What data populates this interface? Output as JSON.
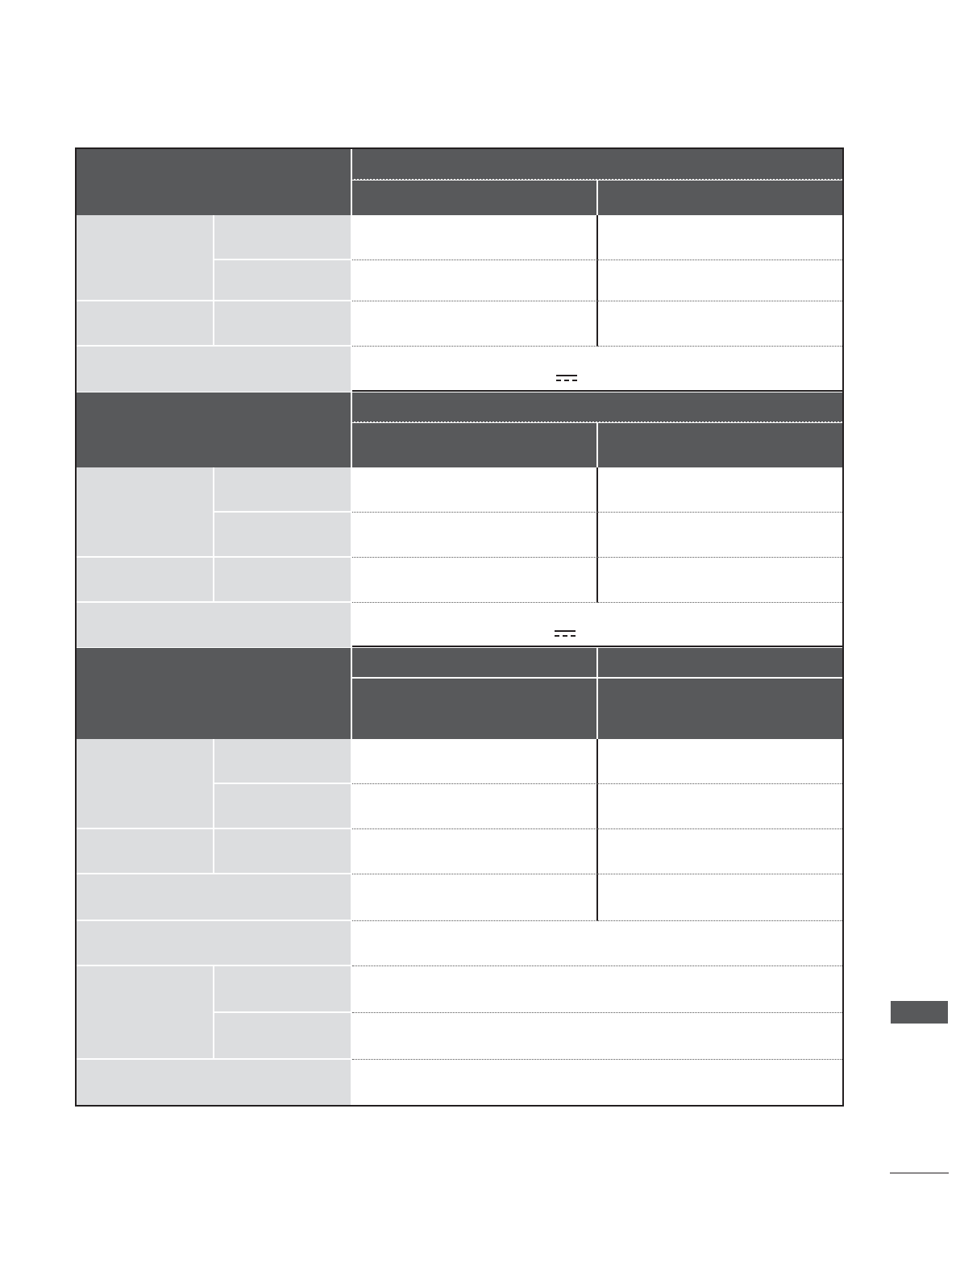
{
  "colors": {
    "header_fill": "#58595b",
    "label_fill": "#dcdddf",
    "value_fill": "#ffffff",
    "border": "#231f20",
    "side_tab": "#58595b"
  },
  "icons": {
    "dc_symbol": "direct-current-icon"
  },
  "sections": [
    {
      "name": "spec-section-1"
    },
    {
      "name": "spec-section-2"
    },
    {
      "name": "spec-section-3"
    }
  ]
}
